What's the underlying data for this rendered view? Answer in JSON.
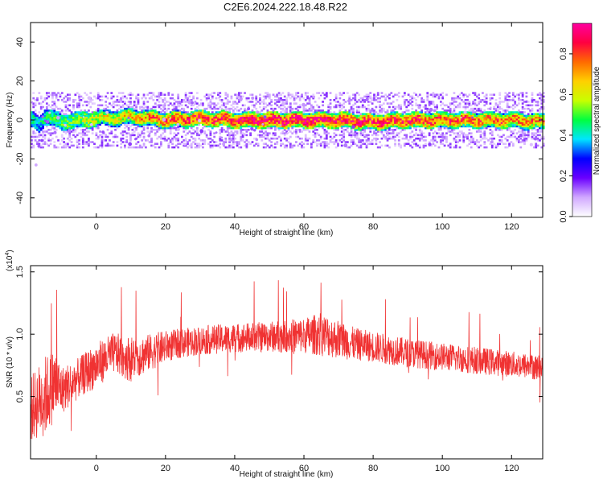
{
  "title": "C2E6.2024.222.18.48.R22",
  "chart_data": [
    {
      "type": "heatmap",
      "title": "",
      "xlabel": "Height of straight line (km)",
      "ylabel": "Frequency (Hz)",
      "xlim": [
        -19,
        129
      ],
      "ylim": [
        -50,
        50
      ],
      "x_ticks": [
        0,
        20,
        40,
        60,
        80,
        100,
        120
      ],
      "y_ticks": [
        40,
        20,
        0,
        -20,
        -40
      ],
      "colorbar": {
        "label": "Normalized spectral amplitude",
        "range": [
          0,
          0.95
        ],
        "ticks": [
          0.0,
          0.2,
          0.4,
          0.6,
          0.8
        ],
        "colors": [
          "#ffffff",
          "#d0a8ff",
          "#6a00ff",
          "#0000ff",
          "#00e5ff",
          "#00ff40",
          "#c8ff00",
          "#ffd000",
          "#ff6a00",
          "#ff0040",
          "#ff00a0"
        ]
      },
      "ridge": {
        "description_freq_hz": 0,
        "x": [
          -19,
          -17,
          -15,
          -12,
          -10,
          -5,
          0,
          5,
          10,
          15,
          20,
          30,
          40,
          50,
          60,
          70,
          80,
          90,
          100,
          110,
          120,
          129
        ],
        "center": [
          0,
          -2,
          2,
          0,
          -1,
          0,
          1,
          1,
          2,
          1,
          0,
          1,
          0,
          0,
          0,
          0,
          -1,
          0,
          0,
          0,
          0,
          -1
        ],
        "peak_amplitude": [
          0.45,
          0.4,
          0.45,
          0.5,
          0.5,
          0.55,
          0.6,
          0.65,
          0.7,
          0.75,
          0.8,
          0.85,
          0.9,
          0.92,
          0.92,
          0.9,
          0.88,
          0.85,
          0.82,
          0.8,
          0.78,
          0.75
        ]
      }
    },
    {
      "type": "line",
      "title": "",
      "xlabel": "Height of straight line (km)",
      "ylabel": "SNR (10 * v/v)",
      "y_multiplier": "(x10",
      "y_multiplier_exp": "4",
      "xlim": [
        -19,
        129
      ],
      "ylim": [
        0,
        15500
      ],
      "x_ticks": [
        0,
        20,
        40,
        60,
        80,
        100,
        120
      ],
      "y_ticks": [
        0.5,
        1.0,
        1.5
      ],
      "series": [
        {
          "color": "#f03232",
          "x": [
            -19,
            -15,
            -12,
            -10,
            -5,
            0,
            5,
            10,
            15,
            20,
            25,
            30,
            40,
            50,
            60,
            65,
            70,
            75,
            80,
            90,
            100,
            110,
            120,
            129
          ],
          "y": [
            4000,
            5000,
            6000,
            5500,
            6500,
            7500,
            8500,
            8000,
            8500,
            9000,
            9300,
            9500,
            9700,
            9800,
            9900,
            10000,
            9600,
            9200,
            9000,
            8500,
            8200,
            7900,
            7600,
            7300
          ],
          "amplitude": [
            4000,
            5000,
            4500,
            3000,
            2500,
            2800,
            2500,
            2800,
            2300,
            2000,
            1800,
            1800,
            1800,
            1900,
            2200,
            2700,
            2400,
            2000,
            1900,
            1800,
            1700,
            1700,
            1600,
            1600
          ]
        }
      ]
    }
  ]
}
